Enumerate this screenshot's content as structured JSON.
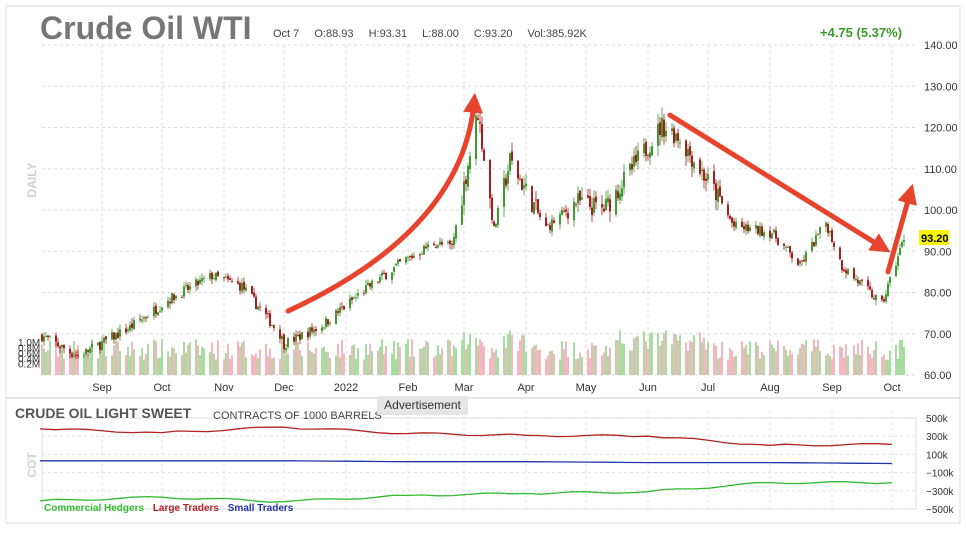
{
  "header": {
    "title": "Crude Oil WTI",
    "date": "Oct 7",
    "open": "O:88.93",
    "high": "H:93.31",
    "low": "L:88.00",
    "close": "C:93.20",
    "volume": "Vol:385.92K",
    "change": "+4.75 (5.37%)"
  },
  "ad_label": "Advertisement",
  "chart_data": [
    {
      "type": "candlestick",
      "title": "Crude Oil WTI",
      "period_label": "DAILY",
      "last_price_label": "93.20",
      "ylim": [
        60,
        140
      ],
      "y_ticks": [
        "140.00",
        "130.00",
        "120.00",
        "110.00",
        "100.00",
        "90.00",
        "80.00",
        "70.00",
        "60.00"
      ],
      "x_ticks": [
        "Sep",
        "Oct",
        "Nov",
        "Dec",
        "2022",
        "Feb",
        "Mar",
        "Apr",
        "May",
        "Jun",
        "Jul",
        "Aug",
        "Sep",
        "Oct"
      ],
      "volume_ticks": [
        "1.0M",
        "0.8M",
        "0.6M",
        "0.4M",
        "0.2M"
      ],
      "colors": {
        "up": "#3d9a2d",
        "down": "#a81c1c",
        "volume_up": "#a8dca0",
        "volume_down": "#f2b8c0",
        "arrow": "#e8432c",
        "label_bg": "#f5f500"
      },
      "trend_series": {
        "name": "",
        "x": [
          "2021-08-02",
          "2021-08-20",
          "2021-09-15",
          "2021-10-05",
          "2021-10-26",
          "2021-11-10",
          "2021-11-29",
          "2021-12-01",
          "2021-12-20",
          "2022-01-10",
          "2022-01-28",
          "2022-02-14",
          "2022-02-23",
          "2022-03-08",
          "2022-03-16",
          "2022-03-24",
          "2022-04-11",
          "2022-04-26",
          "2022-05-10",
          "2022-05-24",
          "2022-06-08",
          "2022-06-16",
          "2022-07-05",
          "2022-07-14",
          "2022-08-02",
          "2022-08-16",
          "2022-08-29",
          "2022-09-06",
          "2022-09-26",
          "2022-10-07"
        ],
        "y": [
          69.5,
          64.5,
          71.5,
          78.5,
          84.0,
          81.5,
          70.0,
          67.5,
          72.0,
          80.5,
          87.0,
          92.0,
          91.0,
          123.7,
          95.0,
          112.0,
          95.5,
          102.0,
          100.0,
          110.0,
          120.5,
          118.0,
          104.0,
          96.0,
          94.5,
          86.5,
          97.0,
          86.5,
          77.0,
          93.2
        ]
      }
    },
    {
      "type": "line",
      "title": "CRUDE OIL LIGHT SWEET",
      "subtitle": "CONTRACTS OF 1000 BARRELS",
      "side_label": "COT",
      "ylim": [
        -500000,
        500000
      ],
      "y_ticks": [
        "500k",
        "300k",
        "100k",
        "−100k",
        "−300k",
        "−500k"
      ],
      "series": [
        {
          "name": "Large Traders",
          "color": "#b22222",
          "x": [
            "2021-08",
            "2021-10",
            "2021-12",
            "2022-02",
            "2022-04",
            "2022-06",
            "2022-08",
            "2022-10"
          ],
          "y": [
            380000,
            340000,
            400000,
            330000,
            310000,
            300000,
            200000,
            210000
          ]
        },
        {
          "name": "Small Traders",
          "color": "#2233aa",
          "x": [
            "2021-08",
            "2021-10",
            "2021-12",
            "2022-02",
            "2022-04",
            "2022-06",
            "2022-08",
            "2022-10"
          ],
          "y": [
            30000,
            30000,
            30000,
            20000,
            20000,
            10000,
            10000,
            0
          ]
        },
        {
          "name": "Commercial Hedgers",
          "color": "#33bb33",
          "x": [
            "2021-08",
            "2021-10",
            "2021-12",
            "2022-02",
            "2022-04",
            "2022-06",
            "2022-08",
            "2022-10"
          ],
          "y": [
            -410000,
            -370000,
            -420000,
            -350000,
            -330000,
            -310000,
            -210000,
            -210000
          ]
        }
      ]
    }
  ]
}
